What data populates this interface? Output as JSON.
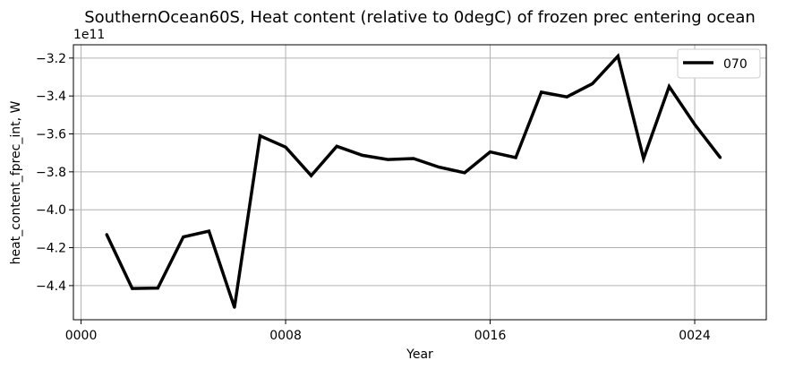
{
  "chart_data": {
    "type": "line",
    "title": "SouthernOcean60S, Heat content (relative to 0degC) of frozen prec entering ocean",
    "xlabel": "Year",
    "ylabel": "heat_content_fprec_int, W",
    "y_offset_label": "1e11",
    "y_scale": 100000000000.0,
    "xlim": [
      -0.3,
      26.8
    ],
    "ylim": [
      -4.58,
      -3.13
    ],
    "xticks": [
      0,
      8,
      16,
      24
    ],
    "xtick_labels": [
      "0000",
      "0008",
      "0016",
      "0024"
    ],
    "yticks": [
      -4.4,
      -4.2,
      -4.0,
      -3.8,
      -3.6,
      -3.4,
      -3.2
    ],
    "ytick_labels": [
      "−4.4",
      "−4.2",
      "−4.0",
      "−3.8",
      "−3.6",
      "−3.4",
      "−3.2"
    ],
    "grid": true,
    "legend_position": "top-right",
    "series": [
      {
        "name": "070",
        "color": "#000000",
        "x": [
          1,
          2,
          3,
          4,
          5,
          6,
          7,
          8,
          9,
          10,
          11,
          12,
          13,
          14,
          15,
          16,
          17,
          18,
          19,
          20,
          21,
          22,
          23,
          24,
          25
        ],
        "y": [
          -4.13,
          -4.415,
          -4.413,
          -4.143,
          -4.113,
          -4.515,
          -3.61,
          -3.67,
          -3.82,
          -3.665,
          -3.713,
          -3.735,
          -3.73,
          -3.775,
          -3.805,
          -3.695,
          -3.725,
          -3.38,
          -3.405,
          -3.335,
          -3.19,
          -3.73,
          -3.35,
          -3.55,
          -3.725
        ]
      }
    ]
  }
}
